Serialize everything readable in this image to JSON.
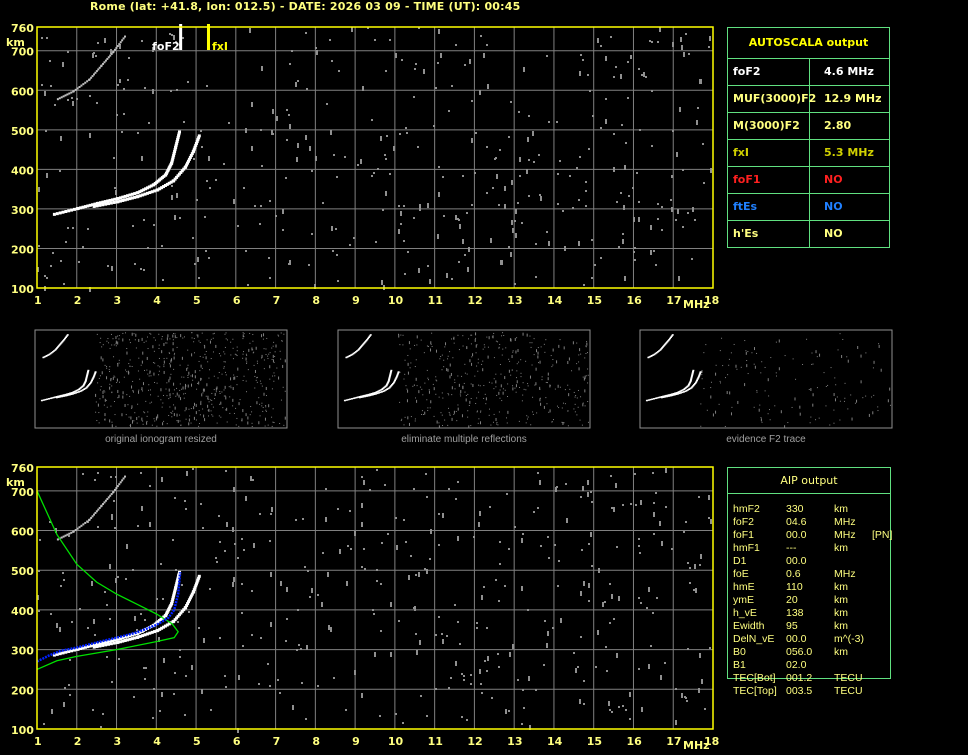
{
  "title": "Rome (lat: +41.8, lon: 012.5) - DATE: 2026 03 09 - TIME (UT): 00:45",
  "colors": {
    "axis": "#ffff00",
    "grid": "#808080",
    "trace": "#ffffff",
    "noise": "#909090",
    "profile": "#00e000",
    "fitted": "#0020ff",
    "table_border": "#60e080"
  },
  "chart_data": [
    {
      "type": "scatter",
      "name": "ionogram",
      "xlabel": "MHz",
      "ylabel": "km",
      "xlim": [
        1,
        18
      ],
      "ylim": [
        100,
        760
      ],
      "xticks": [
        "1",
        "2",
        "3",
        "4",
        "5",
        "6",
        "7",
        "8",
        "9",
        "10",
        "11",
        "12",
        "13",
        "14",
        "15",
        "16",
        "17",
        "18"
      ],
      "yticks": [
        "100",
        "200",
        "300",
        "400",
        "500",
        "600",
        "700",
        "760"
      ],
      "grid": true,
      "markers": [
        {
          "label": "foF2",
          "x": 4.6,
          "color": "#ffffff"
        },
        {
          "label": "fxI",
          "x": 5.3,
          "color": "#ffff00"
        }
      ],
      "traces": {
        "o_mode": [
          [
            1.4,
            290
          ],
          [
            2,
            305
          ],
          [
            2.5,
            318
          ],
          [
            3,
            330
          ],
          [
            3.5,
            345
          ],
          [
            3.9,
            365
          ],
          [
            4.2,
            390
          ],
          [
            4.35,
            420
          ],
          [
            4.45,
            460
          ],
          [
            4.55,
            500
          ]
        ],
        "x_mode": [
          [
            2.4,
            310
          ],
          [
            3,
            322
          ],
          [
            3.5,
            335
          ],
          [
            4,
            352
          ],
          [
            4.4,
            375
          ],
          [
            4.7,
            410
          ],
          [
            4.9,
            450
          ],
          [
            5.05,
            490
          ]
        ],
        "second_hop": [
          [
            1.5,
            580
          ],
          [
            1.9,
            600
          ],
          [
            2.3,
            630
          ],
          [
            2.6,
            665
          ],
          [
            2.9,
            700
          ],
          [
            3.2,
            740
          ]
        ]
      }
    },
    {
      "type": "line",
      "name": "aip",
      "xlabel": "MHz",
      "ylabel": "km",
      "xlim": [
        1,
        18
      ],
      "ylim": [
        100,
        760
      ],
      "xticks": [
        "1",
        "2",
        "3",
        "4",
        "5",
        "6",
        "7",
        "8",
        "9",
        "10",
        "11",
        "12",
        "13",
        "14",
        "15",
        "16",
        "17",
        "18"
      ],
      "yticks": [
        "100",
        "200",
        "300",
        "400",
        "500",
        "600",
        "700",
        "760"
      ],
      "grid": true,
      "profile": [
        [
          1,
          700
        ],
        [
          1.5,
          590
        ],
        [
          2,
          515
        ],
        [
          2.5,
          470
        ],
        [
          3,
          440
        ],
        [
          3.5,
          415
        ],
        [
          4,
          390
        ],
        [
          4.4,
          365
        ],
        [
          4.55,
          345
        ],
        [
          4.45,
          330
        ],
        [
          4,
          320
        ],
        [
          3,
          300
        ],
        [
          2,
          283
        ],
        [
          1.5,
          272
        ],
        [
          1,
          250
        ]
      ],
      "fitted": [
        [
          1,
          270
        ],
        [
          1.3,
          285
        ],
        [
          1.6,
          297
        ],
        [
          2,
          305
        ],
        [
          2.5,
          318
        ],
        [
          3,
          330
        ],
        [
          3.5,
          343
        ],
        [
          4,
          362
        ],
        [
          4.3,
          380
        ],
        [
          4.45,
          400
        ],
        [
          4.5,
          420
        ],
        [
          4.55,
          440
        ],
        [
          4.6,
          495
        ]
      ]
    }
  ],
  "thumbnails": [
    {
      "caption": "original ionogram resized"
    },
    {
      "caption": "eliminate multiple reflections"
    },
    {
      "caption": "evidence F2 trace"
    }
  ],
  "autoscala": {
    "header": "AUTOSCALA output",
    "rows": [
      {
        "key": "foF2",
        "value": "4.6 MHz",
        "color": "#ffffff"
      },
      {
        "key": "MUF(3000)F2",
        "value": "12.9 MHz",
        "color": "#ffff80"
      },
      {
        "key": "M(3000)F2",
        "value": "2.80",
        "color": "#ffff80"
      },
      {
        "key": "fxI",
        "value": "5.3 MHz",
        "color": "#d0d000"
      },
      {
        "key": "foF1",
        "value": "NO",
        "color": "#ff2020"
      },
      {
        "key": "ftEs",
        "value": "NO",
        "color": "#2080ff"
      },
      {
        "key": "h'Es",
        "value": "NO",
        "color": "#ffff80"
      }
    ]
  },
  "aip": {
    "header": "AIP output",
    "rows": [
      [
        "hmF2",
        "330",
        "km",
        ""
      ],
      [
        "foF2",
        "04.6",
        "MHz",
        ""
      ],
      [
        "foF1",
        "00.0",
        "MHz",
        "[PN]"
      ],
      [
        "hmF1",
        "---",
        "km",
        ""
      ],
      [
        "D1",
        "00.0",
        "",
        ""
      ],
      [
        "foE",
        "0.6",
        "MHz",
        ""
      ],
      [
        "hmE",
        "110",
        "km",
        ""
      ],
      [
        "ymE",
        "20",
        "km",
        ""
      ],
      [
        "h_vE",
        "138",
        "km",
        ""
      ],
      [
        "Ewidth",
        "95",
        "km",
        ""
      ],
      [
        "DelN_vE",
        "00.0",
        "m^(-3)",
        ""
      ],
      [
        "B0",
        "056.0",
        "km",
        ""
      ],
      [
        "B1",
        "02.0",
        "",
        ""
      ],
      [
        "TEC[Bot]",
        "001.2",
        "TECU",
        ""
      ],
      [
        "TEC[Top]",
        "003.5",
        "TECU",
        ""
      ]
    ]
  }
}
